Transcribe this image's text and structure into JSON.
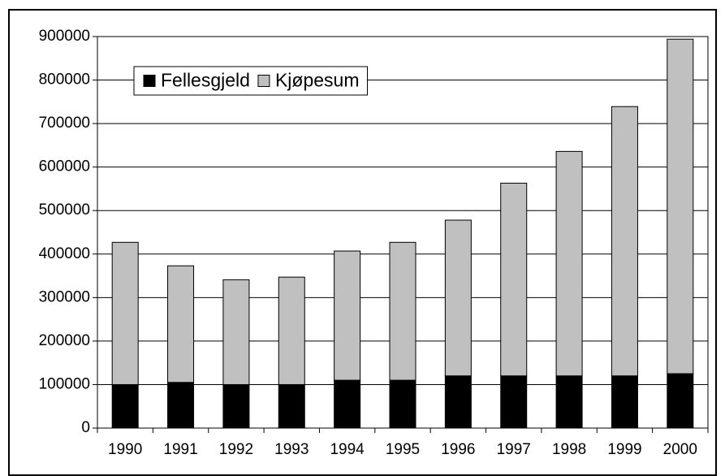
{
  "chart_data": {
    "type": "stacked_bar",
    "categories": [
      "1990",
      "1991",
      "1992",
      "1993",
      "1994",
      "1995",
      "1996",
      "1997",
      "1998",
      "1999",
      "2000"
    ],
    "series": [
      {
        "name": "Fellesgjeld",
        "color": "#000000",
        "values": [
          100000,
          105000,
          100000,
          100000,
          110000,
          110000,
          120000,
          120000,
          120000,
          120000,
          125000
        ]
      },
      {
        "name": "Kjøpesum",
        "color": "#c0c0c0",
        "values": [
          327000,
          268000,
          241000,
          247000,
          297000,
          317000,
          358000,
          443000,
          516000,
          619000,
          769000
        ]
      }
    ],
    "ylim": [
      0,
      900000
    ],
    "yticks": [
      0,
      100000,
      200000,
      300000,
      400000,
      500000,
      600000,
      700000,
      800000,
      900000
    ],
    "grid": true,
    "legend": "upper left"
  }
}
